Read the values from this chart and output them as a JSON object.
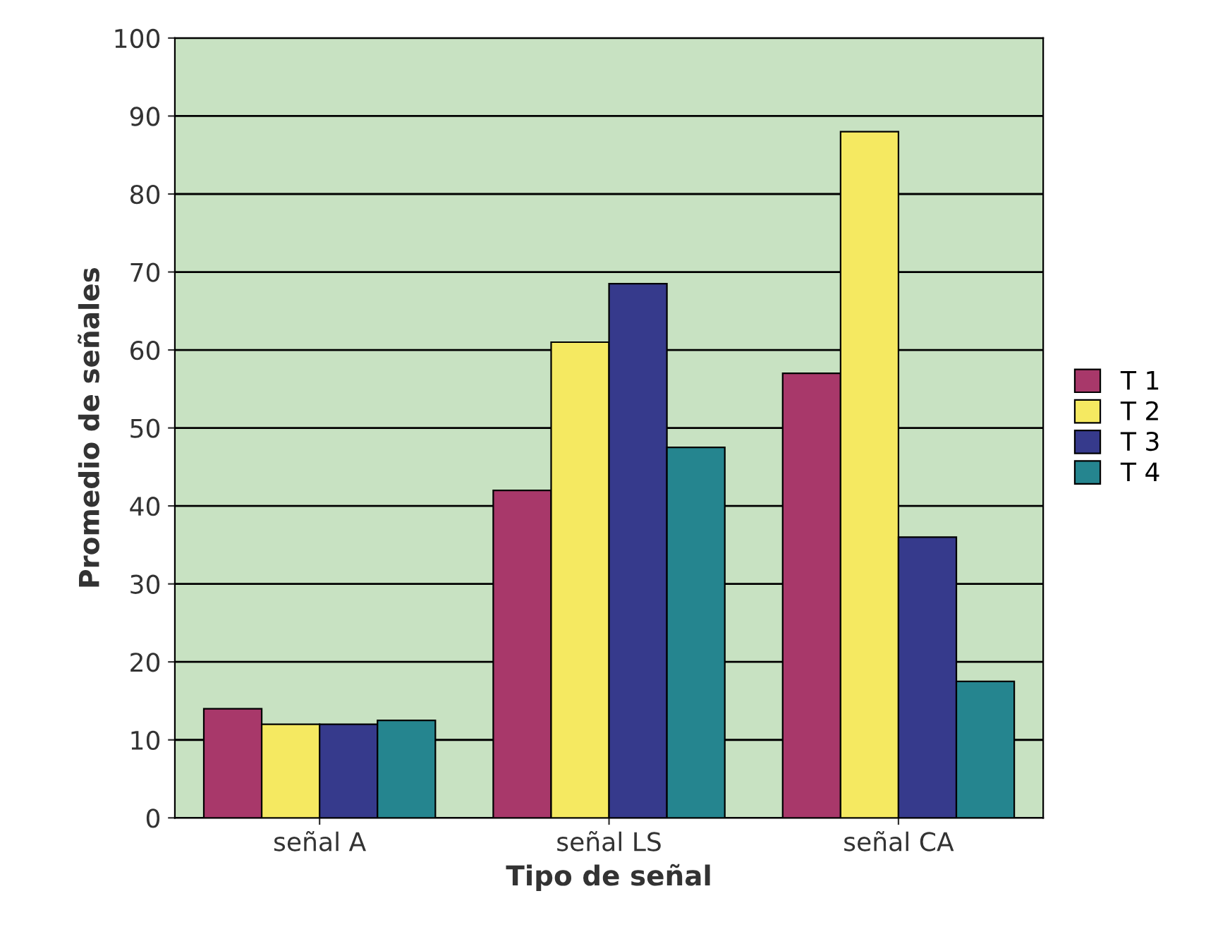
{
  "chart_data": {
    "type": "bar",
    "xlabel": "Tipo de señal",
    "ylabel": "Promedio de señales",
    "categories": [
      "señal A",
      "señal LS",
      "señal CA"
    ],
    "series": [
      {
        "name": "T 1",
        "color": "#a8386a",
        "values": [
          14,
          42,
          57
        ]
      },
      {
        "name": "T 2",
        "color": "#f5e961",
        "values": [
          12,
          61,
          88
        ]
      },
      {
        "name": "T 3",
        "color": "#363a8c",
        "values": [
          12,
          68.5,
          36
        ]
      },
      {
        "name": "T 4",
        "color": "#25858f",
        "values": [
          12.5,
          47.5,
          17.5
        ]
      }
    ],
    "ylim": [
      0,
      100
    ],
    "yticks": [
      0,
      10,
      20,
      30,
      40,
      50,
      60,
      70,
      80,
      90,
      100
    ],
    "grid": "y",
    "legend": "right"
  }
}
